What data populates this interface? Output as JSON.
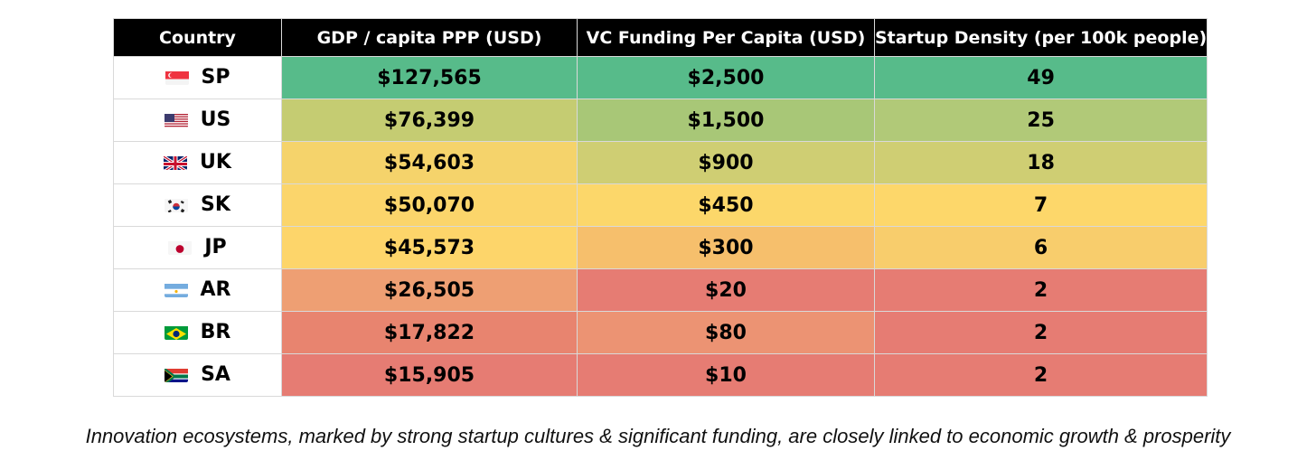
{
  "chart_data": {
    "type": "table",
    "columns": [
      "Country",
      "GDP / capita PPP (USD)",
      "VC Funding Per Capita (USD)",
      "Startup Density (per 100k people)"
    ],
    "rows": [
      {
        "code": "SP",
        "flag_icon": "singapore-flag-icon",
        "gdp": "$127,565",
        "vc": "$2,500",
        "density": "49",
        "colors": [
          "#57bb8a",
          "#57bb8a",
          "#57bb8a"
        ]
      },
      {
        "code": "US",
        "flag_icon": "usa-flag-icon",
        "gdp": "$76,399",
        "vc": "$1,500",
        "density": "25",
        "colors": [
          "#c5cc72",
          "#a8c777",
          "#b1c978"
        ]
      },
      {
        "code": "UK",
        "flag_icon": "uk-flag-icon",
        "gdp": "$54,603",
        "vc": "$900",
        "density": "18",
        "colors": [
          "#f5d36b",
          "#cfce73",
          "#cfce73"
        ]
      },
      {
        "code": "SK",
        "flag_icon": "south-korea-flag-icon",
        "gdp": "$50,070",
        "vc": "$450",
        "density": "7",
        "colors": [
          "#fbd56b",
          "#fcd76a",
          "#fdd76a"
        ]
      },
      {
        "code": "JP",
        "flag_icon": "japan-flag-icon",
        "gdp": "$45,573",
        "vc": "$300",
        "density": "6",
        "colors": [
          "#fdd56a",
          "#f6bf6c",
          "#f8cd6c"
        ]
      },
      {
        "code": "AR",
        "flag_icon": "argentina-flag-icon",
        "gdp": "$26,505",
        "vc": "$20",
        "density": "2",
        "colors": [
          "#ee9f73",
          "#e67c73",
          "#e67c73"
        ]
      },
      {
        "code": "BR",
        "flag_icon": "brazil-flag-icon",
        "gdp": "$17,822",
        "vc": "$80",
        "density": "2",
        "colors": [
          "#e8846f",
          "#ec9373",
          "#e67c73"
        ]
      },
      {
        "code": "SA",
        "flag_icon": "south-africa-flag-icon",
        "gdp": "$15,905",
        "vc": "$10",
        "density": "2",
        "colors": [
          "#e67c73",
          "#e67c73",
          "#e67c73"
        ]
      }
    ]
  },
  "caption": "Innovation ecosystems, marked by strong startup cultures & significant funding, are closely linked to economic growth & prosperity"
}
